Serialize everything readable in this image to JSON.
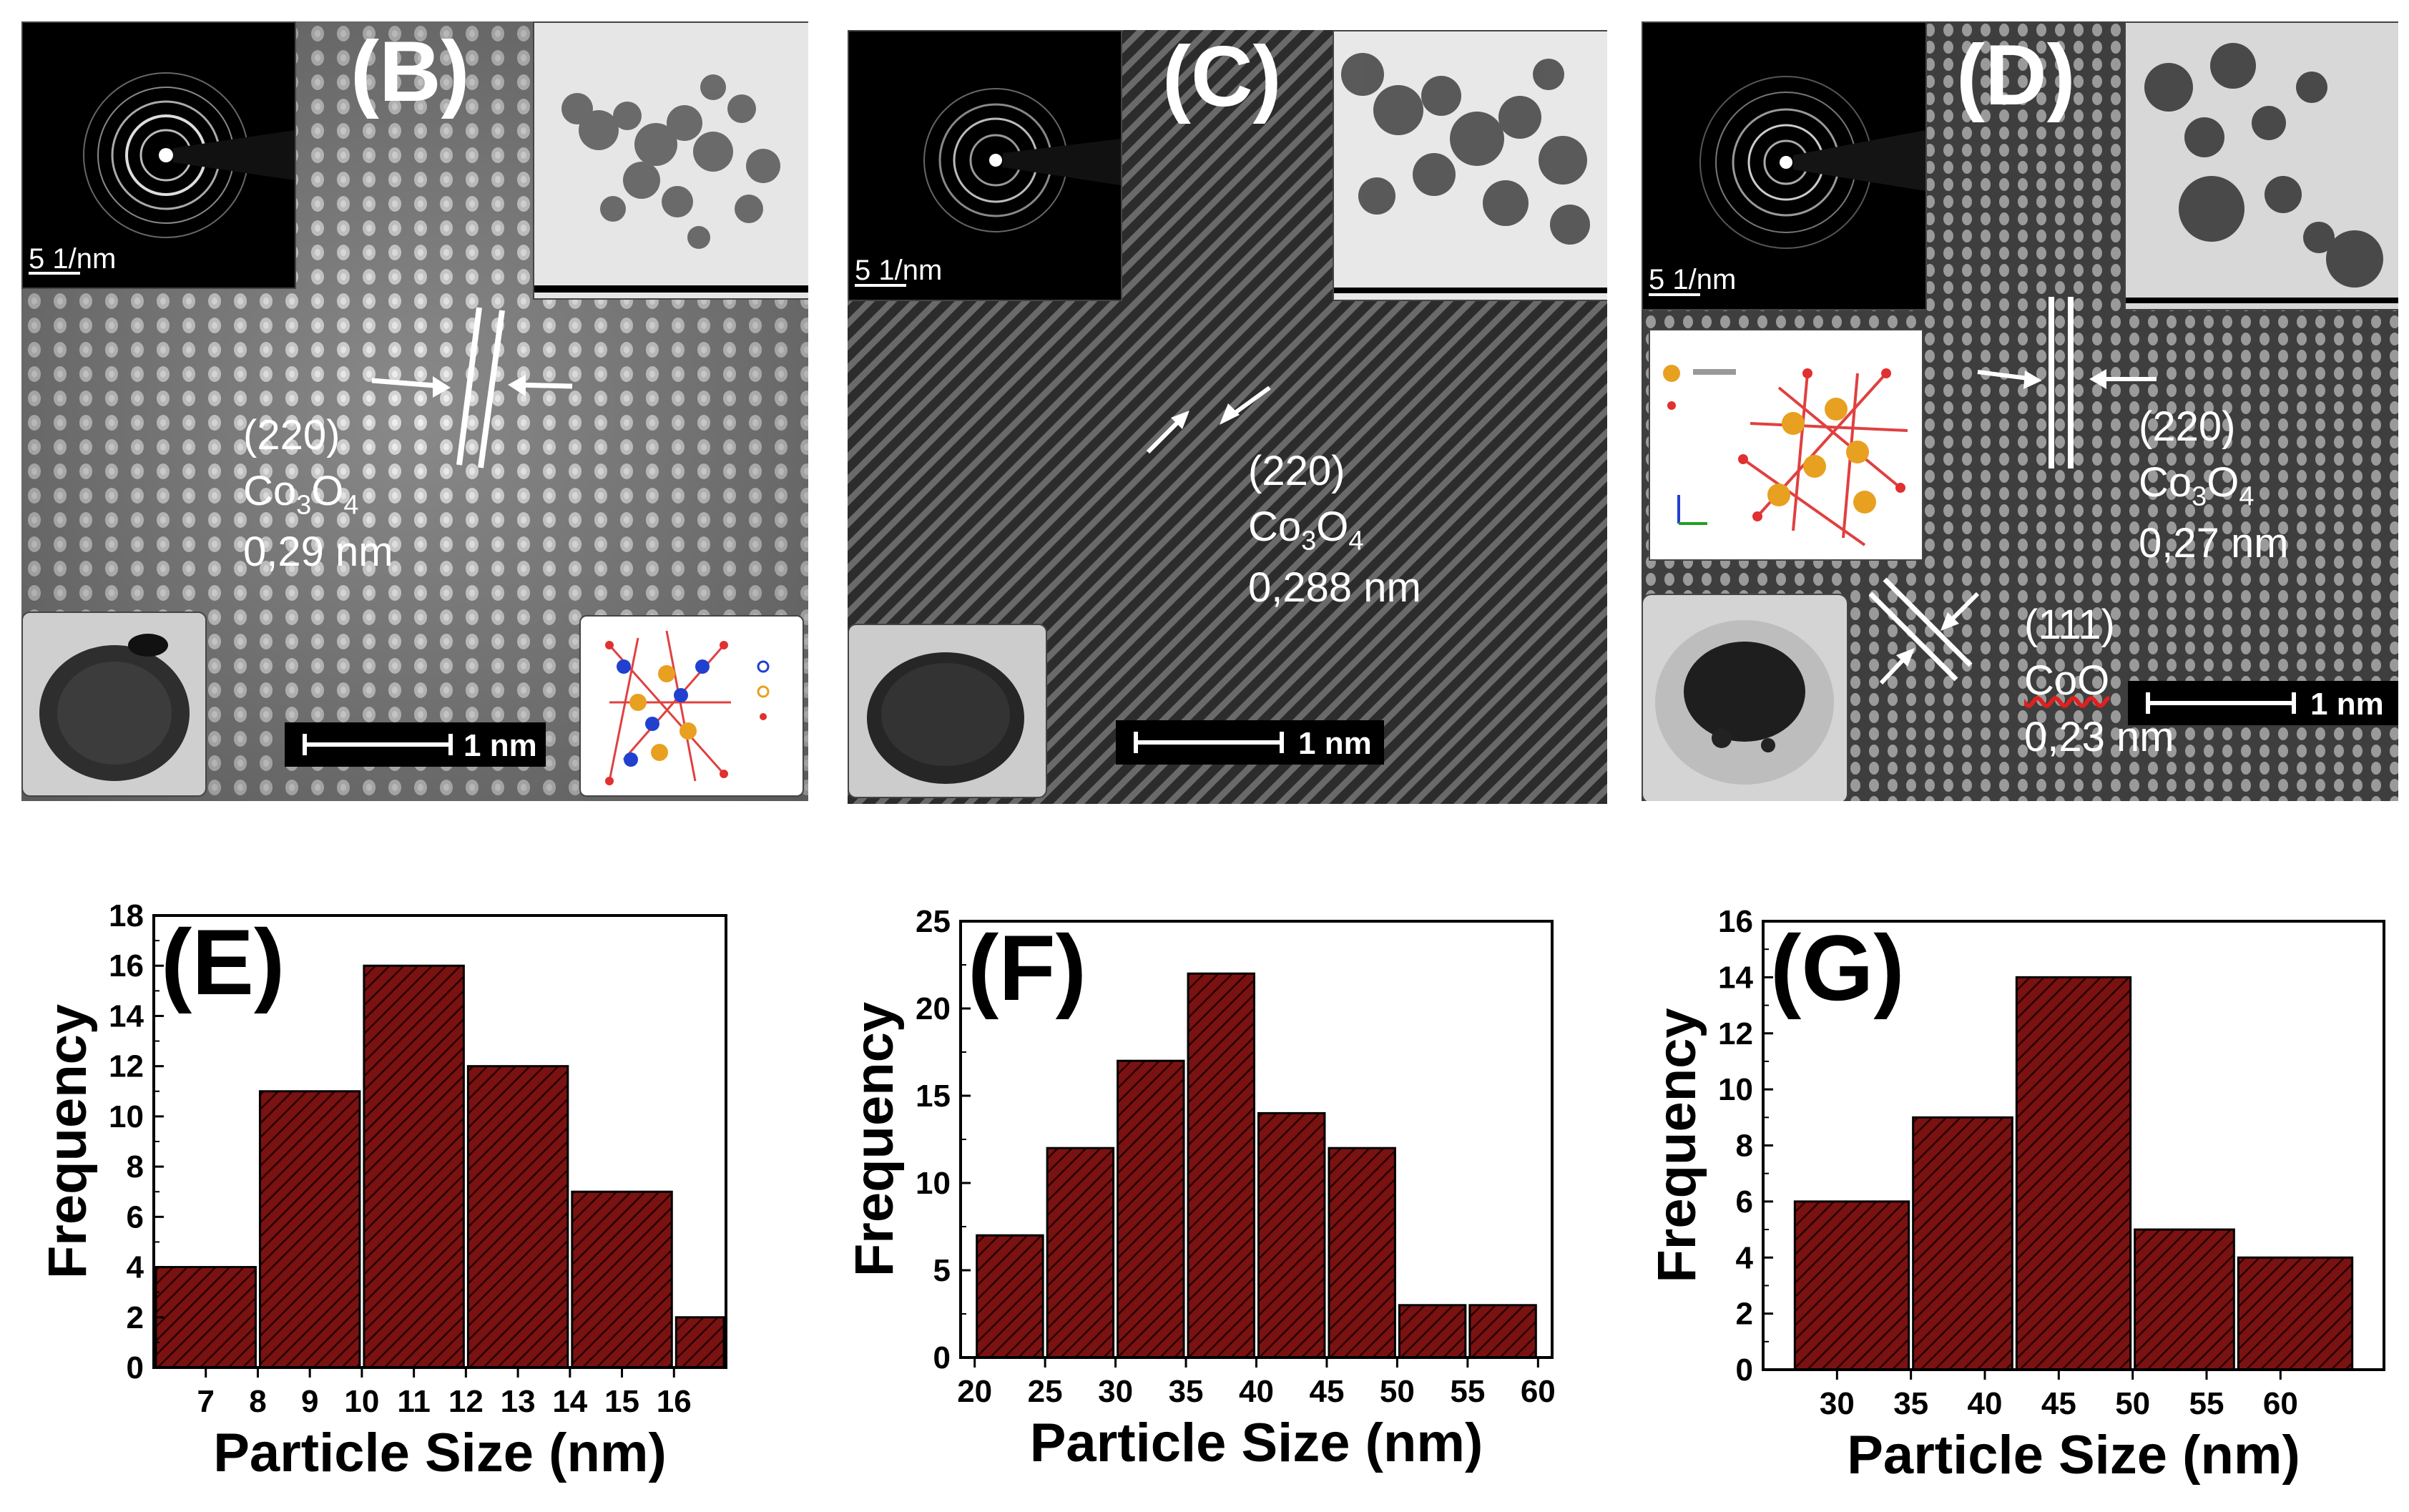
{
  "micrographs": [
    {
      "panel_label": "(B)",
      "annotations": [
        {
          "plane": "(220)",
          "phase_base": "Co",
          "phase_sub1": "3",
          "phase_mid": "O",
          "phase_sub2": "4",
          "spacing": "0,29 nm"
        }
      ],
      "scale_bar": "1 nm",
      "saed_scale": "5 1/nm",
      "colors": {
        "background": "#8e8e8e"
      }
    },
    {
      "panel_label": "(C)",
      "annotations": [
        {
          "plane": "(220)",
          "phase_base": "Co",
          "phase_sub1": "3",
          "phase_mid": "O",
          "phase_sub2": "4",
          "spacing": "0,288 nm"
        }
      ],
      "scale_bar": "1 nm",
      "saed_scale": "5 1/nm",
      "colors": {
        "background": "#3a3a3a"
      }
    },
    {
      "panel_label": "(D)",
      "annotations": [
        {
          "plane": "(220)",
          "phase_base": "Co",
          "phase_sub1": "3",
          "phase_mid": "O",
          "phase_sub2": "4",
          "spacing": "0,27 nm"
        },
        {
          "plane": "(111)",
          "phase_text": "CoO",
          "spacing": "0,23 nm"
        }
      ],
      "scale_bar": "1 nm",
      "saed_scale": "5 1/nm",
      "colors": {
        "background": "#555555"
      }
    }
  ],
  "chart_data": [
    {
      "type": "bar",
      "panel_label": "(E)",
      "xlabel": "Particle Size (nm)",
      "ylabel": "Frequency",
      "bin_edges": [
        6,
        8,
        10,
        12,
        14,
        16,
        17
      ],
      "tick_labels": [
        "7",
        "8",
        "9",
        "10",
        "11",
        "12",
        "13",
        "14",
        "15",
        "16"
      ],
      "values": [
        4,
        11,
        16,
        12,
        7,
        2
      ],
      "ylim": [
        0,
        18
      ],
      "yticks": [
        "0",
        "2",
        "4",
        "6",
        "8",
        "10",
        "12",
        "14",
        "16",
        "18"
      ]
    },
    {
      "type": "bar",
      "panel_label": "(F)",
      "xlabel": "Particle Size (nm)",
      "ylabel": "Frequency",
      "bin_edges": [
        20,
        25,
        30,
        35,
        40,
        45,
        50,
        55,
        60
      ],
      "tick_labels": [
        "20",
        "25",
        "30",
        "35",
        "40",
        "45",
        "50",
        "55",
        "60"
      ],
      "values": [
        7,
        12,
        17,
        22,
        14,
        12,
        3,
        3
      ],
      "ylim": [
        0,
        25
      ],
      "yticks": [
        "0",
        "5",
        "10",
        "15",
        "20",
        "25"
      ]
    },
    {
      "type": "bar",
      "panel_label": "(G)",
      "xlabel": "Particle Size (nm)",
      "ylabel": "Frequency",
      "bin_edges": [
        27,
        35,
        42,
        50,
        57,
        65
      ],
      "tick_labels": [
        "30",
        "35",
        "40",
        "45",
        "50",
        "55",
        "60"
      ],
      "values": [
        6,
        9,
        14,
        5,
        4
      ],
      "ylim": [
        0,
        16
      ],
      "yticks": [
        "0",
        "2",
        "4",
        "6",
        "8",
        "10",
        "12",
        "14",
        "16"
      ]
    }
  ],
  "colors": {
    "bar_fill": "#7a1212",
    "bar_hatch": "#2a0000",
    "axis": "#000000"
  }
}
